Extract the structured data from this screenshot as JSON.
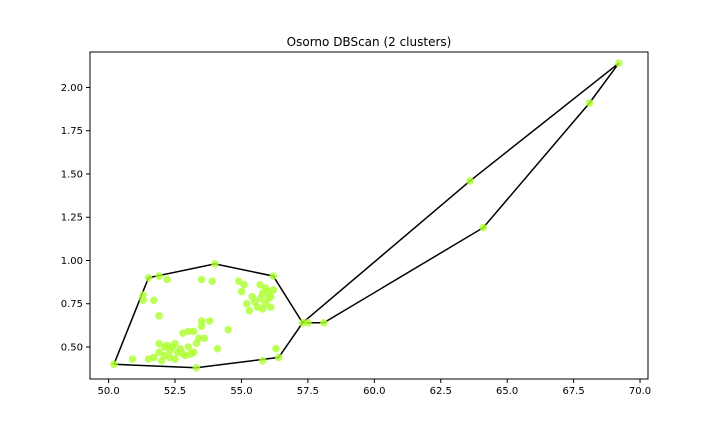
{
  "chart_data": {
    "type": "scatter",
    "title": "Osorno DBScan (2 clusters)",
    "xlabel": "",
    "ylabel": "",
    "xlim": [
      49.3,
      70.3
    ],
    "ylim": [
      0.315,
      2.205
    ],
    "xticks": [
      50.0,
      52.5,
      55.0,
      57.5,
      60.0,
      62.5,
      65.0,
      67.5,
      70.0
    ],
    "xtick_labels": [
      "50.0",
      "52.5",
      "55.0",
      "57.5",
      "60.0",
      "62.5",
      "65.0",
      "67.5",
      "70.0"
    ],
    "yticks": [
      0.5,
      0.75,
      1.0,
      1.25,
      1.5,
      1.75,
      2.0
    ],
    "ytick_labels": [
      "0.50",
      "0.75",
      "1.00",
      "1.25",
      "1.50",
      "1.75",
      "2.00"
    ],
    "grid": false,
    "point_color": "#adff2f",
    "hull_color": "#000000",
    "points": [
      [
        50.2,
        0.4
      ],
      [
        50.9,
        0.43
      ],
      [
        51.3,
        0.8
      ],
      [
        51.3,
        0.77
      ],
      [
        51.5,
        0.9
      ],
      [
        51.5,
        0.43
      ],
      [
        51.7,
        0.44
      ],
      [
        51.7,
        0.77
      ],
      [
        51.9,
        0.91
      ],
      [
        51.9,
        0.68
      ],
      [
        51.9,
        0.52
      ],
      [
        51.9,
        0.47
      ],
      [
        52.0,
        0.42
      ],
      [
        52.1,
        0.5
      ],
      [
        52.1,
        0.45
      ],
      [
        52.2,
        0.89
      ],
      [
        52.2,
        0.51
      ],
      [
        52.3,
        0.48
      ],
      [
        52.3,
        0.44
      ],
      [
        52.4,
        0.5
      ],
      [
        52.5,
        0.52
      ],
      [
        52.5,
        0.43
      ],
      [
        52.6,
        0.47
      ],
      [
        52.7,
        0.49
      ],
      [
        52.8,
        0.46
      ],
      [
        52.8,
        0.58
      ],
      [
        52.9,
        0.45
      ],
      [
        53.0,
        0.59
      ],
      [
        53.0,
        0.5
      ],
      [
        53.1,
        0.46
      ],
      [
        53.2,
        0.59
      ],
      [
        53.2,
        0.47
      ],
      [
        53.3,
        0.38
      ],
      [
        53.3,
        0.52
      ],
      [
        53.4,
        0.55
      ],
      [
        53.5,
        0.89
      ],
      [
        53.5,
        0.65
      ],
      [
        53.5,
        0.62
      ],
      [
        53.6,
        0.55
      ],
      [
        53.8,
        0.65
      ],
      [
        53.9,
        0.88
      ],
      [
        54.0,
        0.98
      ],
      [
        54.1,
        0.49
      ],
      [
        54.5,
        0.6
      ],
      [
        54.9,
        0.88
      ],
      [
        55.0,
        0.82
      ],
      [
        55.1,
        0.86
      ],
      [
        55.2,
        0.75
      ],
      [
        55.3,
        0.71
      ],
      [
        55.4,
        0.79
      ],
      [
        55.5,
        0.76
      ],
      [
        55.6,
        0.73
      ],
      [
        55.7,
        0.86
      ],
      [
        55.7,
        0.78
      ],
      [
        55.8,
        0.72
      ],
      [
        55.8,
        0.81
      ],
      [
        55.9,
        0.84
      ],
      [
        55.9,
        0.75
      ],
      [
        56.0,
        0.82
      ],
      [
        56.0,
        0.78
      ],
      [
        56.1,
        0.79
      ],
      [
        56.1,
        0.73
      ],
      [
        56.2,
        0.91
      ],
      [
        56.2,
        0.83
      ],
      [
        55.8,
        0.42
      ],
      [
        56.3,
        0.49
      ],
      [
        56.4,
        0.44
      ],
      [
        57.3,
        0.64
      ],
      [
        57.5,
        0.64
      ],
      [
        58.1,
        0.64
      ],
      [
        63.6,
        1.46
      ],
      [
        64.1,
        1.19
      ],
      [
        68.1,
        1.91
      ],
      [
        69.2,
        2.14
      ]
    ],
    "hulls": [
      [
        [
          50.2,
          0.4
        ],
        [
          53.3,
          0.38
        ],
        [
          56.4,
          0.44
        ],
        [
          57.3,
          0.64
        ],
        [
          56.2,
          0.91
        ],
        [
          54.0,
          0.98
        ],
        [
          51.5,
          0.9
        ],
        [
          50.2,
          0.4
        ]
      ],
      [
        [
          57.3,
          0.64
        ],
        [
          58.1,
          0.64
        ],
        [
          64.1,
          1.19
        ],
        [
          68.1,
          1.91
        ],
        [
          69.2,
          2.14
        ],
        [
          63.6,
          1.46
        ],
        [
          57.3,
          0.64
        ]
      ]
    ]
  }
}
